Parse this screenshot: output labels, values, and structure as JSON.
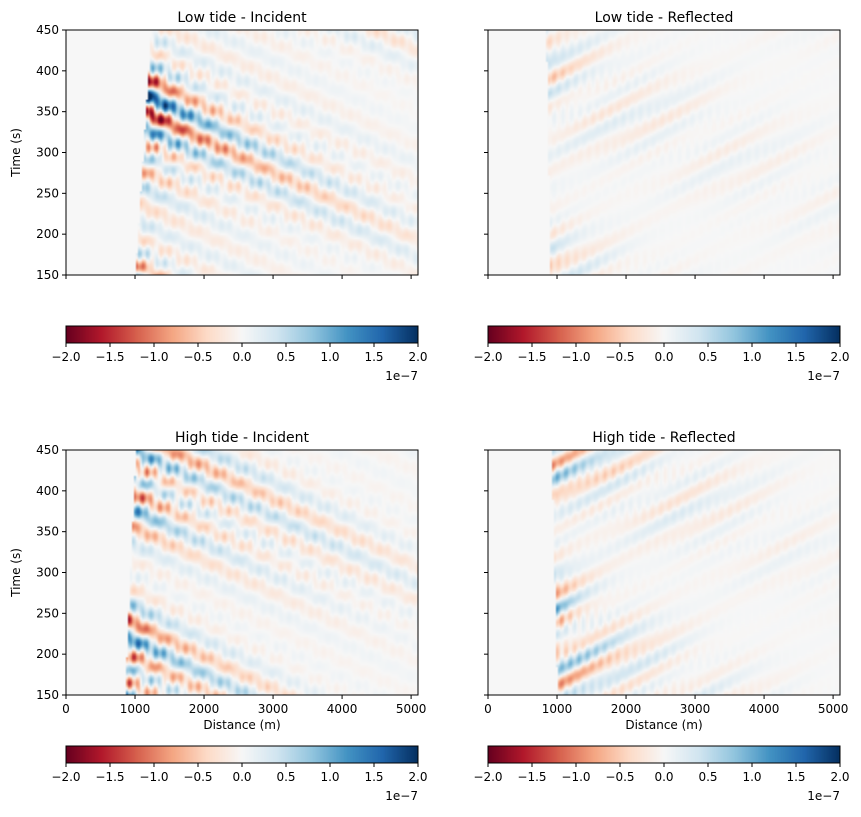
{
  "chart_data": [
    {
      "type": "heatmap",
      "title": "Low tide - Incident",
      "xlabel": "",
      "ylabel": "Time (s)",
      "xlim": [
        0,
        5100
      ],
      "ylim": [
        150,
        450
      ],
      "xticks": [
        0,
        1000,
        2000,
        3000,
        4000,
        5000
      ],
      "xtick_labels_visible": false,
      "yticks": [
        150,
        200,
        250,
        300,
        350,
        400,
        450
      ],
      "ytick_labels_visible": true,
      "pattern": {
        "onset_x": 1000,
        "onset_slope_m_per_s": 2.2,
        "strength": 1.0,
        "decay_m": 2600,
        "wave_kind": "incident"
      },
      "colorbar": {
        "cmap": "RdBu",
        "vmin": -2.0,
        "vmax": 2.0,
        "ticks": [
          -2.0,
          -1.5,
          -1.0,
          -0.5,
          0.0,
          0.5,
          1.0,
          1.5,
          2.0
        ],
        "tick_labels": [
          "−2.0",
          "−1.5",
          "−1.0",
          "−0.5",
          "0.0",
          "0.5",
          "1.0",
          "1.5",
          "2.0"
        ],
        "scale_label": "1e−7"
      }
    },
    {
      "type": "heatmap",
      "title": "Low tide - Reflected",
      "xlabel": "",
      "ylabel": "",
      "xlim": [
        0,
        5100
      ],
      "ylim": [
        150,
        450
      ],
      "xticks": [
        0,
        1000,
        2000,
        3000,
        4000,
        5000
      ],
      "xtick_labels_visible": false,
      "yticks": [
        150,
        200,
        250,
        300,
        350,
        400,
        450
      ],
      "ytick_labels_visible": false,
      "pattern": {
        "onset_x": 900,
        "onset_slope_m_per_s": -0.6,
        "strength": 0.25,
        "decay_m": 3500,
        "wave_kind": "reflected"
      },
      "colorbar": {
        "cmap": "RdBu",
        "vmin": -2.0,
        "vmax": 2.0,
        "ticks": [
          -2.0,
          -1.5,
          -1.0,
          -0.5,
          0.0,
          0.5,
          1.0,
          1.5,
          2.0
        ],
        "tick_labels": [
          "−2.0",
          "−1.5",
          "−1.0",
          "−0.5",
          "0.0",
          "0.5",
          "1.0",
          "1.5",
          "2.0"
        ],
        "scale_label": "1e−7"
      }
    },
    {
      "type": "heatmap",
      "title": "High tide - Incident",
      "xlabel": "Distance (m)",
      "ylabel": "Time (s)",
      "xlim": [
        0,
        5100
      ],
      "ylim": [
        150,
        450
      ],
      "xticks": [
        0,
        1000,
        2000,
        3000,
        4000,
        5000
      ],
      "xtick_labels": [
        "0",
        "1000",
        "2000",
        "3000",
        "4000",
        "5000"
      ],
      "xtick_labels_visible": true,
      "yticks": [
        150,
        200,
        250,
        300,
        350,
        400,
        450
      ],
      "ytick_labels_visible": true,
      "pattern": {
        "onset_x": 850,
        "onset_slope_m_per_s": 1.5,
        "strength": 0.85,
        "decay_m": 2800,
        "wave_kind": "incident"
      },
      "colorbar": {
        "cmap": "RdBu",
        "vmin": -2.0,
        "vmax": 2.0,
        "ticks": [
          -2.0,
          -1.5,
          -1.0,
          -0.5,
          0.0,
          0.5,
          1.0,
          1.5,
          2.0
        ],
        "tick_labels": [
          "−2.0",
          "−1.5",
          "−1.0",
          "−0.5",
          "0.0",
          "0.5",
          "1.0",
          "1.5",
          "2.0"
        ],
        "scale_label": "1e−7"
      }
    },
    {
      "type": "heatmap",
      "title": "High tide - Reflected",
      "xlabel": "Distance (m)",
      "ylabel": "",
      "xlim": [
        0,
        5100
      ],
      "ylim": [
        150,
        450
      ],
      "xticks": [
        0,
        1000,
        2000,
        3000,
        4000,
        5000
      ],
      "xtick_labels": [
        "0",
        "1000",
        "2000",
        "3000",
        "4000",
        "5000"
      ],
      "xtick_labels_visible": true,
      "yticks": [
        150,
        200,
        250,
        300,
        350,
        400,
        450
      ],
      "ytick_labels_visible": false,
      "pattern": {
        "onset_x": 1000,
        "onset_slope_m_per_s": -0.8,
        "strength": 0.55,
        "decay_m": 2000,
        "wave_kind": "reflected"
      },
      "colorbar": {
        "cmap": "RdBu",
        "vmin": -2.0,
        "vmax": 2.0,
        "ticks": [
          -2.0,
          -1.5,
          -1.0,
          -0.5,
          0.0,
          0.5,
          1.0,
          1.5,
          2.0
        ],
        "tick_labels": [
          "−2.0",
          "−1.5",
          "−1.0",
          "−0.5",
          "0.0",
          "0.5",
          "1.0",
          "1.5",
          "2.0"
        ],
        "scale_label": "1e−7"
      }
    }
  ]
}
